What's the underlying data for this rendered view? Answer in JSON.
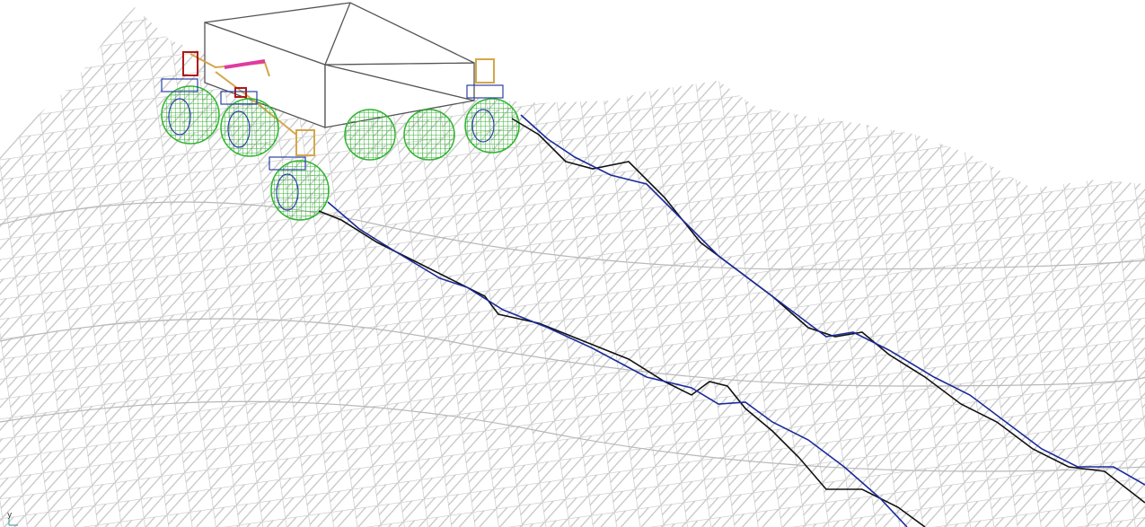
{
  "axis_triad": {
    "label": "y"
  }
}
